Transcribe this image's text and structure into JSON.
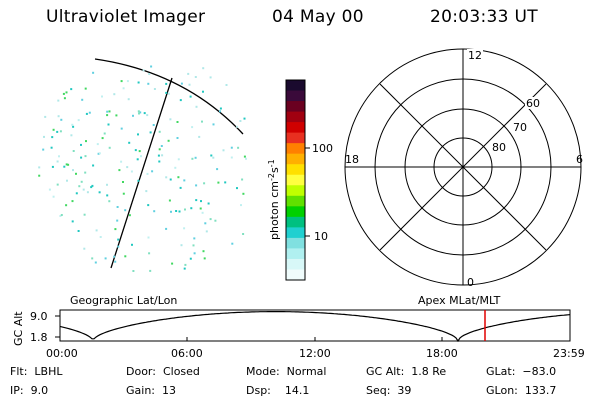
{
  "header": {
    "title": "Ultraviolet Imager",
    "date": "04 May 00",
    "time": "20:03:33 UT"
  },
  "colorbar": {
    "label": "photon cm",
    "label_sup1": "-2",
    "label_mid": "s",
    "label_sup2": "-1",
    "ticks": [
      "100",
      "10"
    ],
    "colors": [
      "#1a0a2e",
      "#3a0a3a",
      "#6a0020",
      "#a00010",
      "#d00000",
      "#e83020",
      "#ff8000",
      "#ffb000",
      "#ffe000",
      "#ffff40",
      "#c0ff00",
      "#60e000",
      "#00d000",
      "#00c080",
      "#20d0d0",
      "#80e0e0",
      "#b0f0f0",
      "#d8f8f8",
      "#f0fcfc"
    ]
  },
  "polar": {
    "lat_labels": [
      "60",
      "70",
      "80"
    ],
    "mlt_labels": {
      "top": "12",
      "bottom": "0",
      "left": "18",
      "right": "6"
    }
  },
  "orbit_plot": {
    "left_label": "Geographic Lat/Lon",
    "right_label": "Apex MLat/MLT",
    "y_axis_label": "GC Alt",
    "y_ticks": [
      "9.0",
      "1.8"
    ],
    "x_ticks": [
      "00:00",
      "06:00",
      "12:00",
      "18:00",
      "23:59"
    ],
    "marker_color": "#e00000"
  },
  "info": {
    "flt": "Flt:  LBHL",
    "ip": "IP:  9.0",
    "door": "Door:  Closed",
    "gain": "Gain:  13",
    "mode": "Mode:  Normal",
    "dsp": "Dsp:    14.1",
    "gcalt": "GC Alt:  1.8 Re",
    "seq": "Seq:  39",
    "glat": "GLat:  −83.0",
    "glon": "GLon:  133.7"
  }
}
